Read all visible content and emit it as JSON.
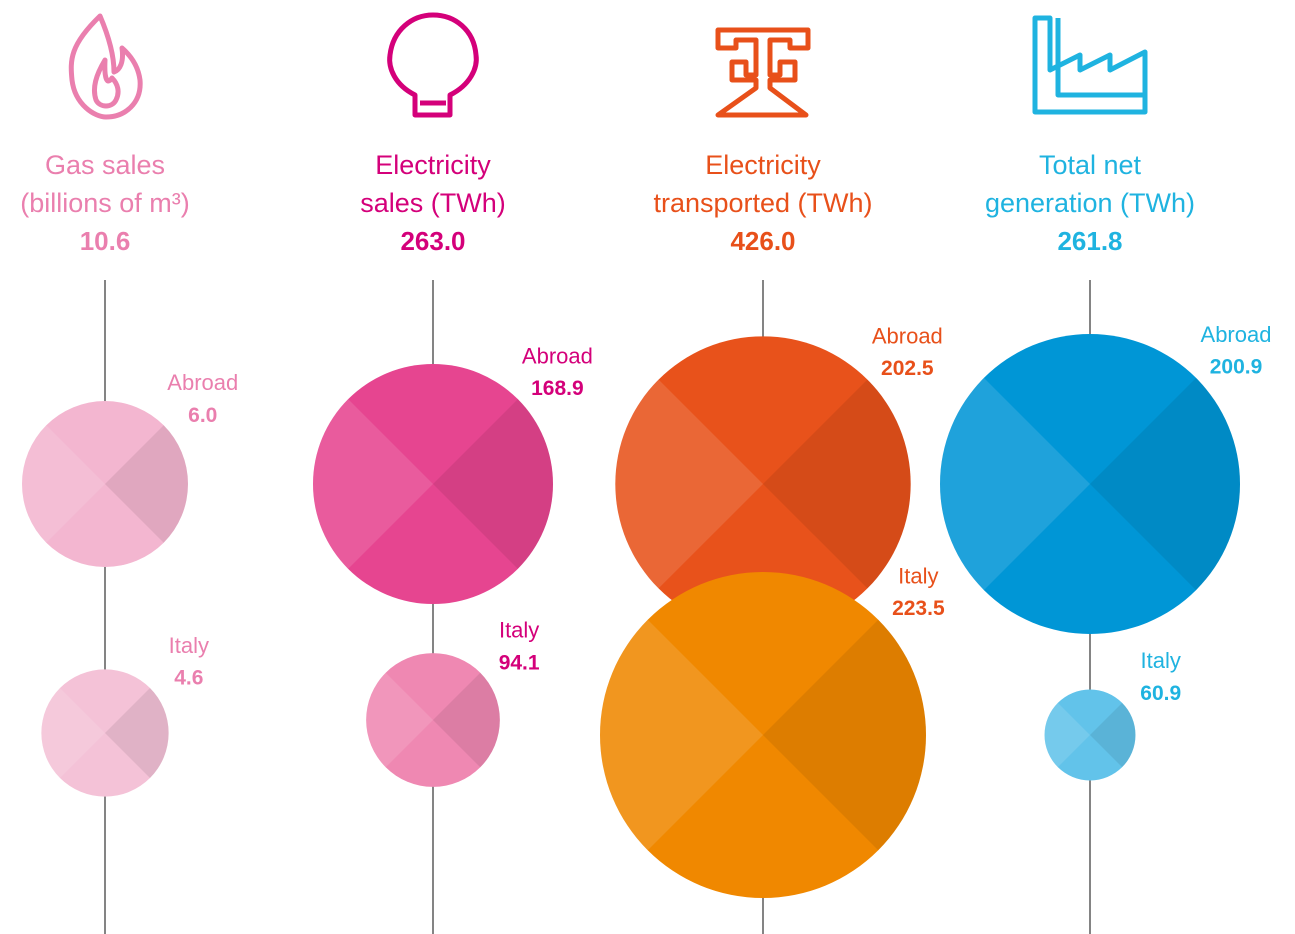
{
  "chart_data": [
    {
      "type": "bubble",
      "title": [
        "Gas sales",
        "(billions of m³)"
      ],
      "total": 10.6,
      "categories": [
        "Abroad",
        "Italy"
      ],
      "values": [
        6,
        4.6
      ],
      "value_labels": [
        "6.0",
        "4.6"
      ],
      "color": "#ea7fae",
      "colors": [
        "#f3b6d0",
        "#f4c2d7"
      ]
    },
    {
      "type": "bubble",
      "title": [
        "Electricity",
        "sales (TWh)"
      ],
      "total": {
        "value": 263,
        "label": "263.0"
      },
      "categories": [
        "Abroad",
        "Italy"
      ],
      "values": [
        168.9,
        94.1
      ],
      "color": "#d4007a",
      "colors": [
        "#e64590",
        "#ef88b2"
      ]
    },
    {
      "type": "bubble",
      "title": [
        "Electricity",
        "transported (TWh)"
      ],
      "total": {
        "value": 426,
        "label": "426.0"
      },
      "categories": [
        "Abroad",
        "Italy"
      ],
      "values": [
        202.5,
        223.5
      ],
      "color": "#e8501a",
      "colors": [
        "#e8521b",
        "#f08800"
      ]
    },
    {
      "type": "bubble",
      "title": [
        "Total net",
        "generation (TWh)"
      ],
      "total": 261.8,
      "categories": [
        "Abroad",
        "Italy"
      ],
      "values": [
        200.9,
        60.9
      ],
      "color": "#1fb3e0",
      "colors": [
        "#0096d6",
        "#62c3ea"
      ]
    }
  ]
}
